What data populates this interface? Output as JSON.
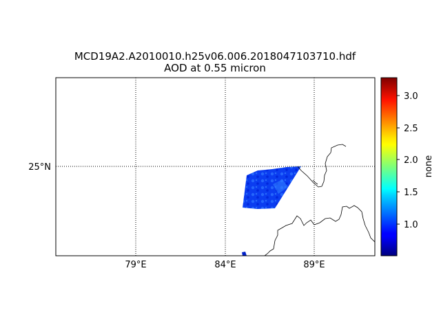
{
  "title": {
    "line1": "MCD19A2.A2010010.h25v06.006.2018047103710.hdf",
    "line2": "AOD at 0.55 micron"
  },
  "map": {
    "projection": "cylindrical",
    "lon_range": [
      74.5,
      92.5
    ],
    "lat_range": [
      20,
      30
    ],
    "meridians": [
      {
        "lon": 79,
        "label": "79°E"
      },
      {
        "lon": 84,
        "label": "84°E"
      },
      {
        "lon": 89,
        "label": "89°E"
      }
    ],
    "parallels": [
      {
        "lat": 25,
        "label": "25°N"
      }
    ],
    "gridline_style": "dotted",
    "features": [
      "coastlines"
    ]
  },
  "colorbar": {
    "colormap": "jet",
    "label": "none",
    "vmin": 0.5,
    "vmax": 3.3,
    "ticks": [
      "1.0",
      "1.5",
      "2.0",
      "2.5",
      "3.0"
    ],
    "orientation": "vertical",
    "placement": "right"
  },
  "data_swaths": [
    {
      "name": "main-swath",
      "color": "#0b3df0",
      "highlight": "#2f7dff"
    },
    {
      "name": "small-patch",
      "color": "#0020c8",
      "highlight": "#0038e0"
    }
  ]
}
